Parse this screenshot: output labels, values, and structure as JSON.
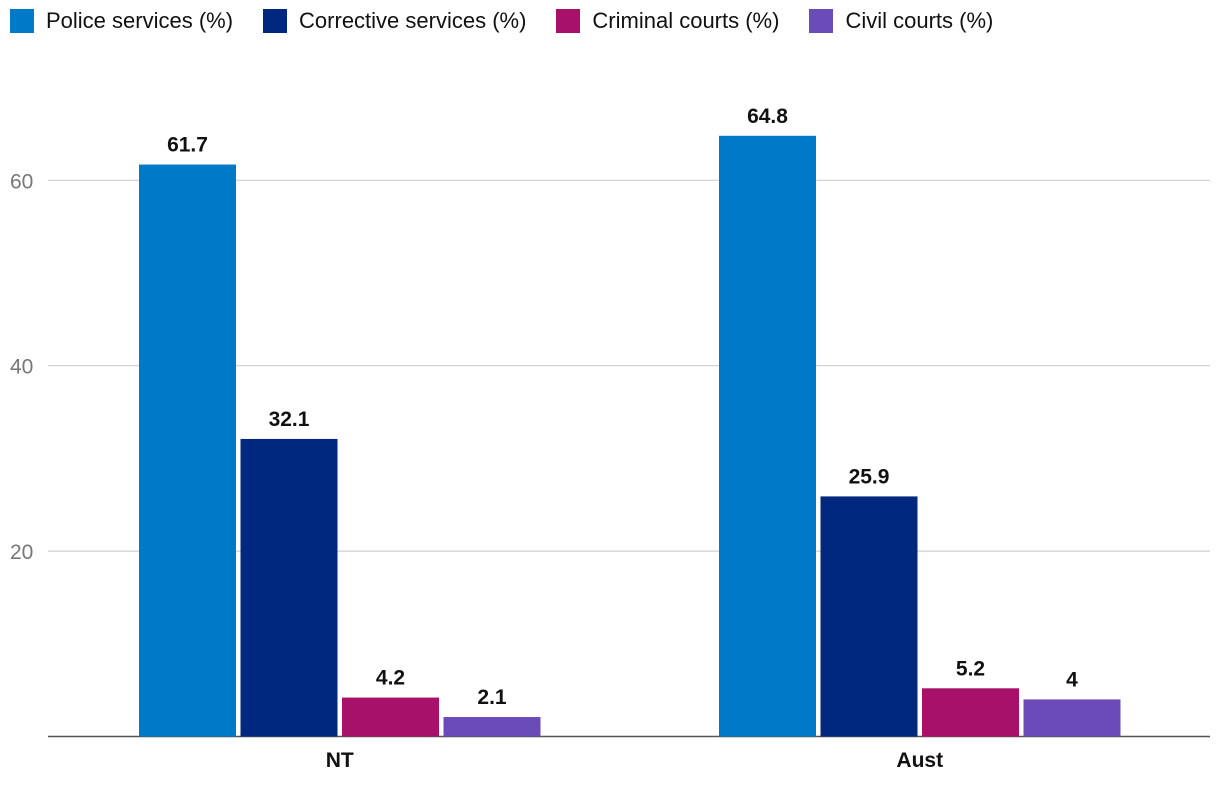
{
  "chart_data": {
    "type": "bar",
    "title": "",
    "xlabel": "",
    "ylabel": "",
    "categories": [
      "NT",
      "Aust"
    ],
    "series": [
      {
        "name": "Police services (%)",
        "color": "#0079C8",
        "values": [
          61.7,
          64.8
        ],
        "value_labels": [
          "61.7",
          "64.8"
        ]
      },
      {
        "name": "Corrective services (%)",
        "color": "#00287F",
        "values": [
          32.1,
          25.9
        ],
        "value_labels": [
          "32.1",
          "25.9"
        ]
      },
      {
        "name": "Criminal courts (%)",
        "color": "#A8116A",
        "values": [
          4.2,
          5.2
        ],
        "value_labels": [
          "4.2",
          "5.2"
        ]
      },
      {
        "name": "Civil courts (%)",
        "color": "#6A4BB8",
        "values": [
          2.1,
          4
        ],
        "value_labels": [
          "2.1",
          "4"
        ]
      }
    ],
    "ylim": [
      0,
      70
    ],
    "yticks": [
      20,
      40,
      60
    ],
    "grid": true,
    "legend_position": "top-left"
  }
}
